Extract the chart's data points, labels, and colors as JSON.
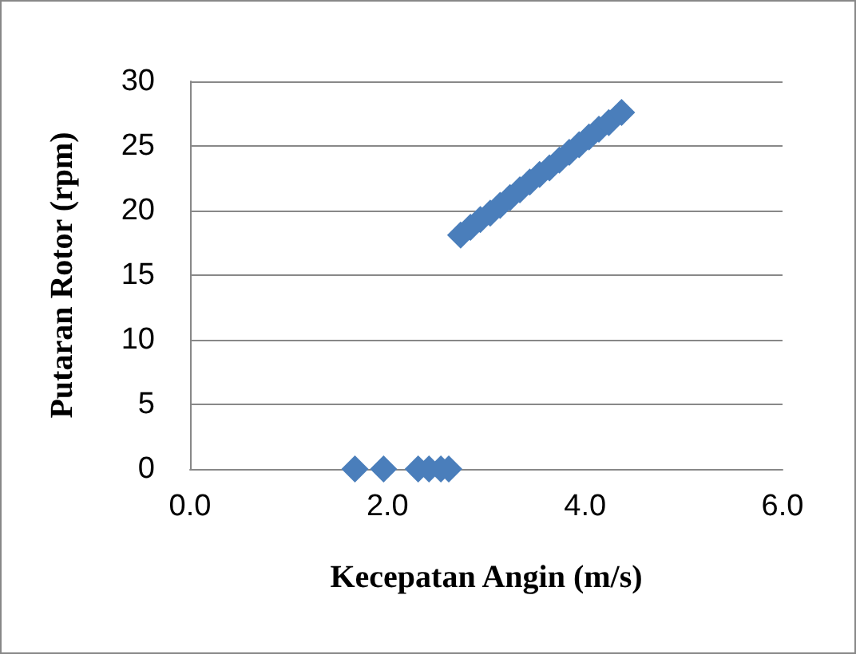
{
  "chart_data": {
    "type": "scatter",
    "xlabel": "Kecepatan Angin (m/s)",
    "ylabel": "Putaran Rotor (rpm)",
    "x": [
      1.67,
      1.96,
      2.31,
      2.42,
      2.54,
      2.62,
      2.74,
      2.84,
      2.94,
      3.04,
      3.14,
      3.24,
      3.34,
      3.44,
      3.54,
      3.64,
      3.74,
      3.84,
      3.94,
      4.04,
      4.14,
      4.24,
      4.37
    ],
    "series": [
      {
        "color": "#4a7ebb",
        "values": [
          0,
          0,
          0,
          0,
          0,
          0,
          18.1,
          18.7,
          19.3,
          19.8,
          20.4,
          21.0,
          21.6,
          22.2,
          22.8,
          23.3,
          23.9,
          24.5,
          25.1,
          25.7,
          26.3,
          26.8,
          27.6
        ]
      }
    ],
    "xlim": [
      0,
      6
    ],
    "xticks": [
      {
        "value": 0,
        "label": "0.0"
      },
      {
        "value": 2,
        "label": "2.0"
      },
      {
        "value": 4,
        "label": "4.0"
      },
      {
        "value": 6,
        "label": "6.0"
      }
    ],
    "ylim": [
      0,
      30
    ],
    "yticks": [
      0,
      5,
      10,
      15,
      20,
      25,
      30
    ],
    "grid": "y",
    "marker": "diamond"
  }
}
